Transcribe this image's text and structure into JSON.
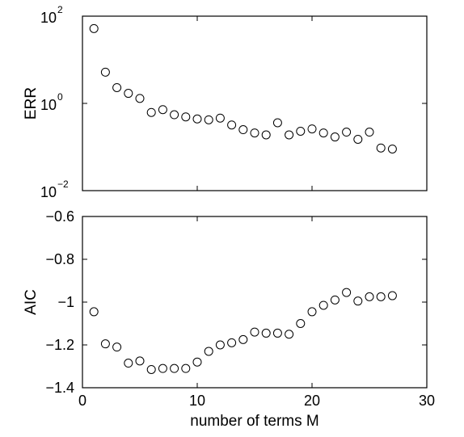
{
  "chart_data": [
    {
      "type": "scatter",
      "marker": "open-circle",
      "scale": "log",
      "ylabel": "ERR",
      "xlabel": "",
      "xlim": [
        0,
        30
      ],
      "ylim": [
        0.01,
        100
      ],
      "yticks": [
        {
          "value": 0.01,
          "base": "10",
          "exp": "−2"
        },
        {
          "value": 1,
          "base": "10",
          "exp": "0"
        },
        {
          "value": 100,
          "base": "10",
          "exp": "2"
        }
      ],
      "x": [
        1,
        2,
        3,
        4,
        5,
        6,
        7,
        8,
        9,
        10,
        11,
        12,
        13,
        14,
        15,
        16,
        17,
        18,
        19,
        20,
        21,
        22,
        23,
        24,
        25,
        26,
        27
      ],
      "y": [
        52,
        5.2,
        2.3,
        1.7,
        1.3,
        0.62,
        0.72,
        0.55,
        0.49,
        0.44,
        0.42,
        0.46,
        0.32,
        0.25,
        0.21,
        0.19,
        0.36,
        0.19,
        0.23,
        0.26,
        0.21,
        0.17,
        0.22,
        0.15,
        0.22,
        0.095,
        0.09
      ]
    },
    {
      "type": "scatter",
      "marker": "open-circle",
      "scale": "linear",
      "ylabel": "AIC",
      "xlabel": "number of terms M",
      "xlim": [
        0,
        30
      ],
      "ylim": [
        -1.4,
        -0.6
      ],
      "xticks": [
        "0",
        "10",
        "20",
        "30"
      ],
      "yticks": [
        "−0.6",
        "−0.8",
        "−1",
        "−1.2",
        "−1.4"
      ],
      "ytick_values": [
        -0.6,
        -0.8,
        -1.0,
        -1.2,
        -1.4
      ],
      "x": [
        1,
        2,
        3,
        4,
        5,
        6,
        7,
        8,
        9,
        10,
        11,
        12,
        13,
        14,
        15,
        16,
        17,
        18,
        19,
        20,
        21,
        22,
        23,
        24,
        25,
        26,
        27
      ],
      "y": [
        -1.045,
        -1.195,
        -1.21,
        -1.285,
        -1.275,
        -1.315,
        -1.31,
        -1.31,
        -1.31,
        -1.28,
        -1.23,
        -1.2,
        -1.19,
        -1.175,
        -1.14,
        -1.145,
        -1.145,
        -1.15,
        -1.1,
        -1.045,
        -1.015,
        -0.99,
        -0.955,
        -0.995,
        -0.975,
        -0.975,
        -0.97
      ]
    }
  ]
}
